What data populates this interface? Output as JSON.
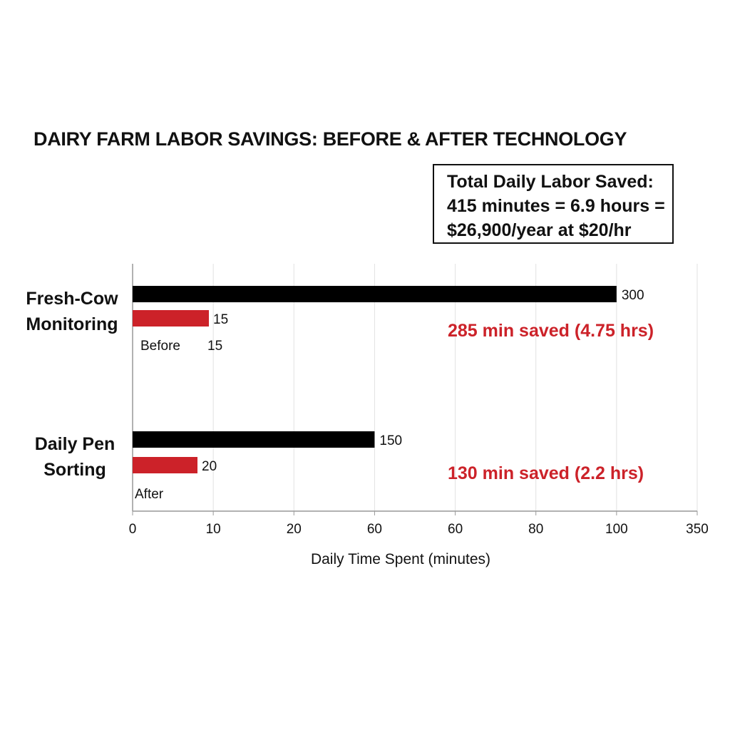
{
  "chart_data": {
    "type": "bar",
    "orientation": "horizontal",
    "title": "DAIRY FARM LABOR SAVINGS: BEFORE & AFTER TECHNOLOGY",
    "xlabel": "Daily Time Spent (minutes)",
    "ylabel": "",
    "xlim": [
      0,
      350
    ],
    "x_tick_labels": [
      "0",
      "10",
      "20",
      "60",
      "60",
      "80",
      "100",
      "350"
    ],
    "grid": true,
    "categories": [
      [
        "Fresh-Cow",
        "Monitoring"
      ],
      [
        "Daily Pen",
        "Sorting"
      ]
    ],
    "series": [
      {
        "name": "Before",
        "color": "#000000",
        "values": [
          300,
          150
        ]
      },
      {
        "name": "After",
        "color": "#cc2229",
        "values": [
          15,
          20
        ]
      }
    ],
    "data_labels": {
      "before": [
        "300",
        "150"
      ],
      "after": [
        "15",
        "20"
      ]
    },
    "extra_labels": [
      {
        "text": "Before",
        "extra": "15"
      },
      {
        "text": "After",
        "extra": ""
      }
    ],
    "annotations": [
      "285 min saved (4.75 hrs)",
      "130 min saved (2.2 hrs)"
    ],
    "annotation_color": "#cc2229",
    "summary_box": [
      "Total Daily Labor Saved:",
      "415 minutes = 6.9 hours =",
      "$26,900/year at $20/hr"
    ]
  }
}
